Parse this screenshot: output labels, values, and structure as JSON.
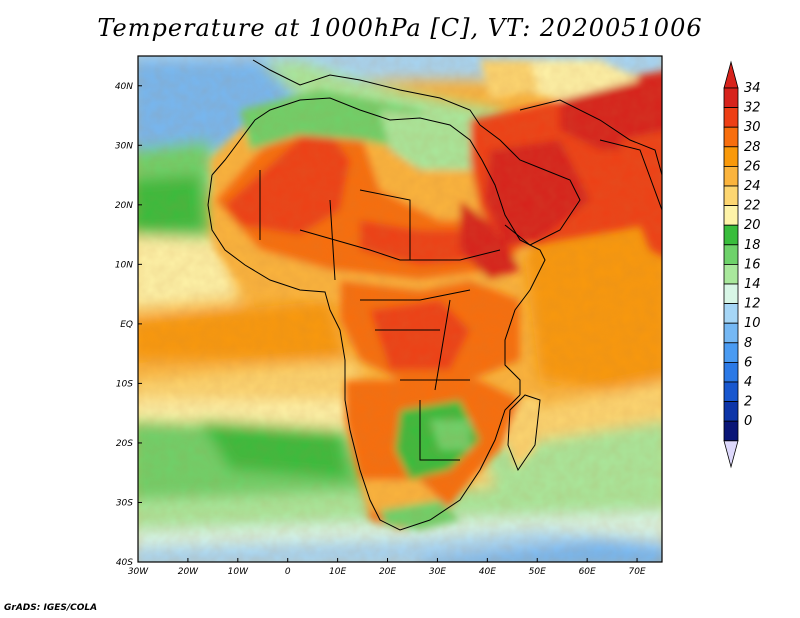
{
  "title": "Temperature at 1000hPa [C], VT: 2020051006",
  "credit": "GrADS: IGES/COLA",
  "map": {
    "lon_range": [
      -30,
      75
    ],
    "lat_range": [
      -40,
      45
    ],
    "lon_ticks": [
      {
        "lon": -30,
        "label": "30W"
      },
      {
        "lon": -20,
        "label": "20W"
      },
      {
        "lon": -10,
        "label": "10W"
      },
      {
        "lon": 0,
        "label": "0"
      },
      {
        "lon": 10,
        "label": "10E"
      },
      {
        "lon": 20,
        "label": "20E"
      },
      {
        "lon": 30,
        "label": "30E"
      },
      {
        "lon": 40,
        "label": "40E"
      },
      {
        "lon": 50,
        "label": "50E"
      },
      {
        "lon": 60,
        "label": "60E"
      },
      {
        "lon": 70,
        "label": "70E"
      }
    ],
    "lat_ticks": [
      {
        "lat": 40,
        "label": "40N"
      },
      {
        "lat": 30,
        "label": "30N"
      },
      {
        "lat": 20,
        "label": "20N"
      },
      {
        "lat": 10,
        "label": "10N"
      },
      {
        "lat": 0,
        "label": "EQ"
      },
      {
        "lat": -10,
        "label": "10S"
      },
      {
        "lat": -20,
        "label": "20S"
      },
      {
        "lat": -30,
        "label": "30S"
      },
      {
        "lat": -40,
        "label": "40S"
      }
    ]
  },
  "colorbar": {
    "labels": [
      "34",
      "32",
      "30",
      "28",
      "26",
      "24",
      "22",
      "20",
      "18",
      "16",
      "14",
      "12",
      "10",
      "8",
      "6",
      "4",
      "2",
      "0"
    ],
    "colors": [
      "#d7231c",
      "#ee3f15",
      "#f86e0d",
      "#f9990a",
      "#fbb43d",
      "#fdd671",
      "#fef3a8",
      "#39bd3c",
      "#6ed26a",
      "#a9e89c",
      "#d8f6e6",
      "#a6d6f6",
      "#75b8f4",
      "#4a9bf2",
      "#2b79e6",
      "#1857cf",
      "#0d35a8",
      "#0a1677"
    ],
    "top_arrow_color": "#d7231c",
    "bottom_arrow_color": "#ddd8fb"
  }
}
